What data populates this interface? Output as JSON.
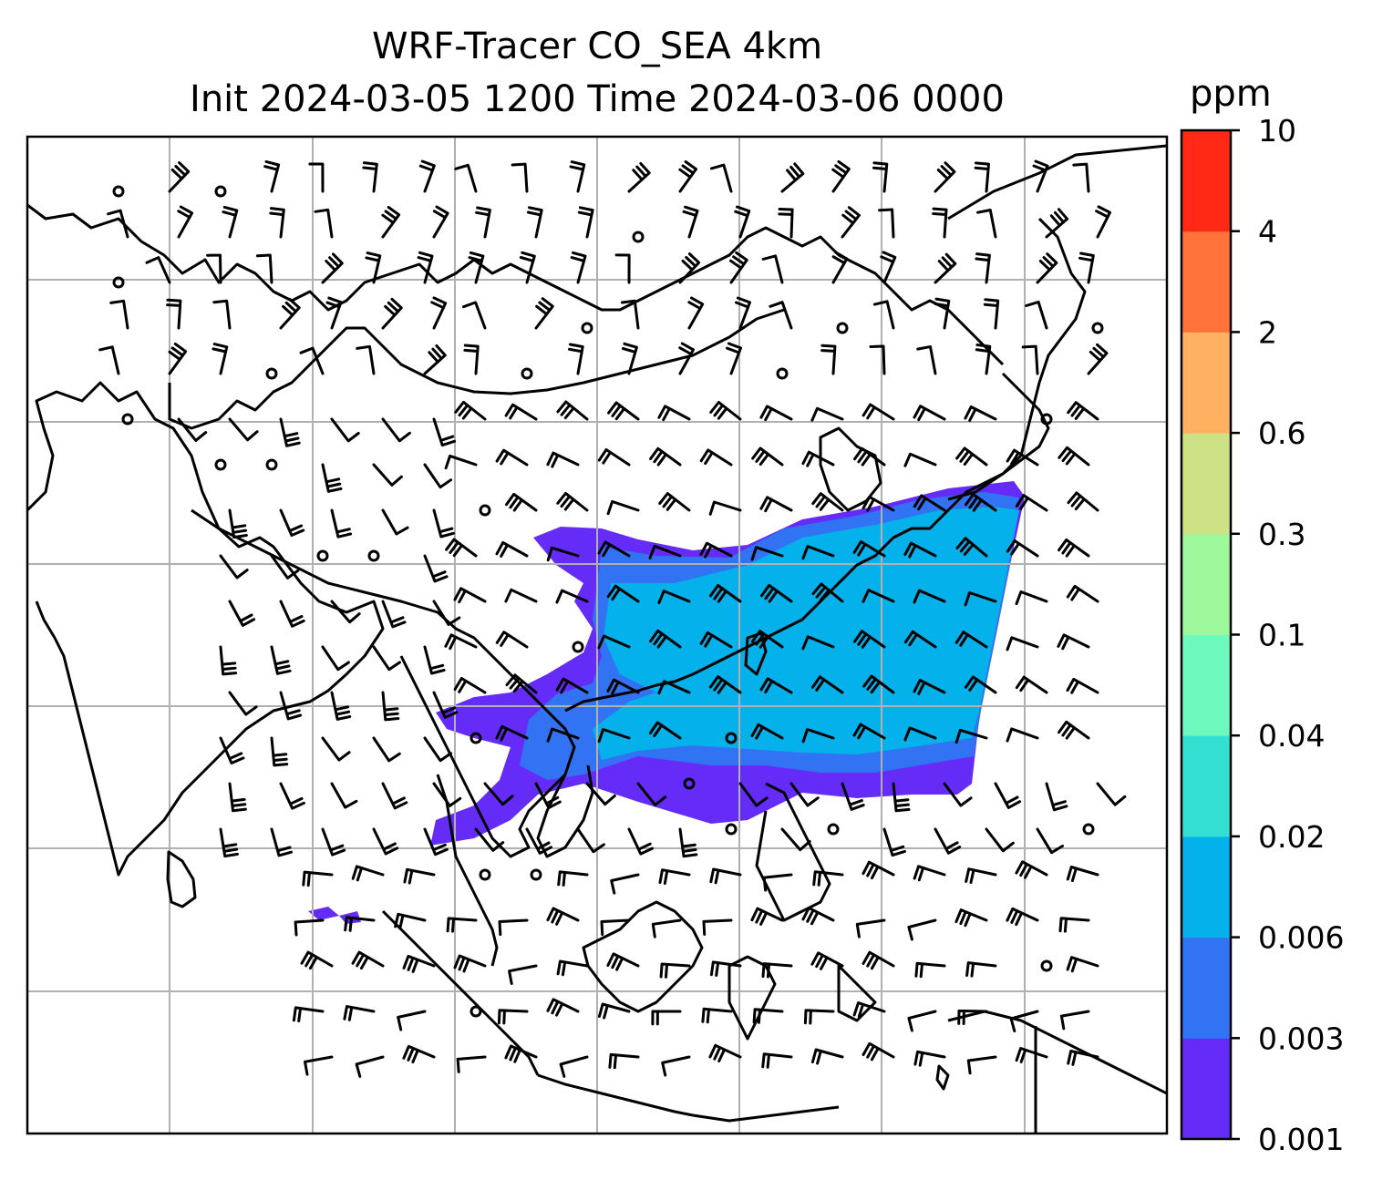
{
  "title": {
    "line1": "WRF-Tracer CO_SEA 4km",
    "line2": "Init 2024-03-05 1200 Time 2024-03-06 0000"
  },
  "colorbar": {
    "unit": "ppm",
    "levels": [
      "0.001",
      "0.003",
      "0.006",
      "0.02",
      "0.04",
      "0.1",
      "0.3",
      "0.6",
      "2",
      "4",
      "10"
    ],
    "colors": [
      "#652cf7",
      "#3273f3",
      "#05b1ea",
      "#33dfd0",
      "#6df8bd",
      "#9cf89a",
      "#cde185",
      "#ffb060",
      "#ff7239",
      "#ff2916"
    ]
  },
  "map": {
    "gridlines": true,
    "coastline_color": "#000000",
    "tracer": "CO_SEA"
  }
}
